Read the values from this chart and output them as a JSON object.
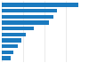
{
  "values": [
    90,
    65,
    60,
    55,
    38,
    28,
    23,
    19,
    14,
    10
  ],
  "bar_color": "#1a7abf",
  "background_color": "#ffffff",
  "grid_color": "#e0e0e0",
  "xlim": [
    0,
    100
  ],
  "n_bars": 10
}
